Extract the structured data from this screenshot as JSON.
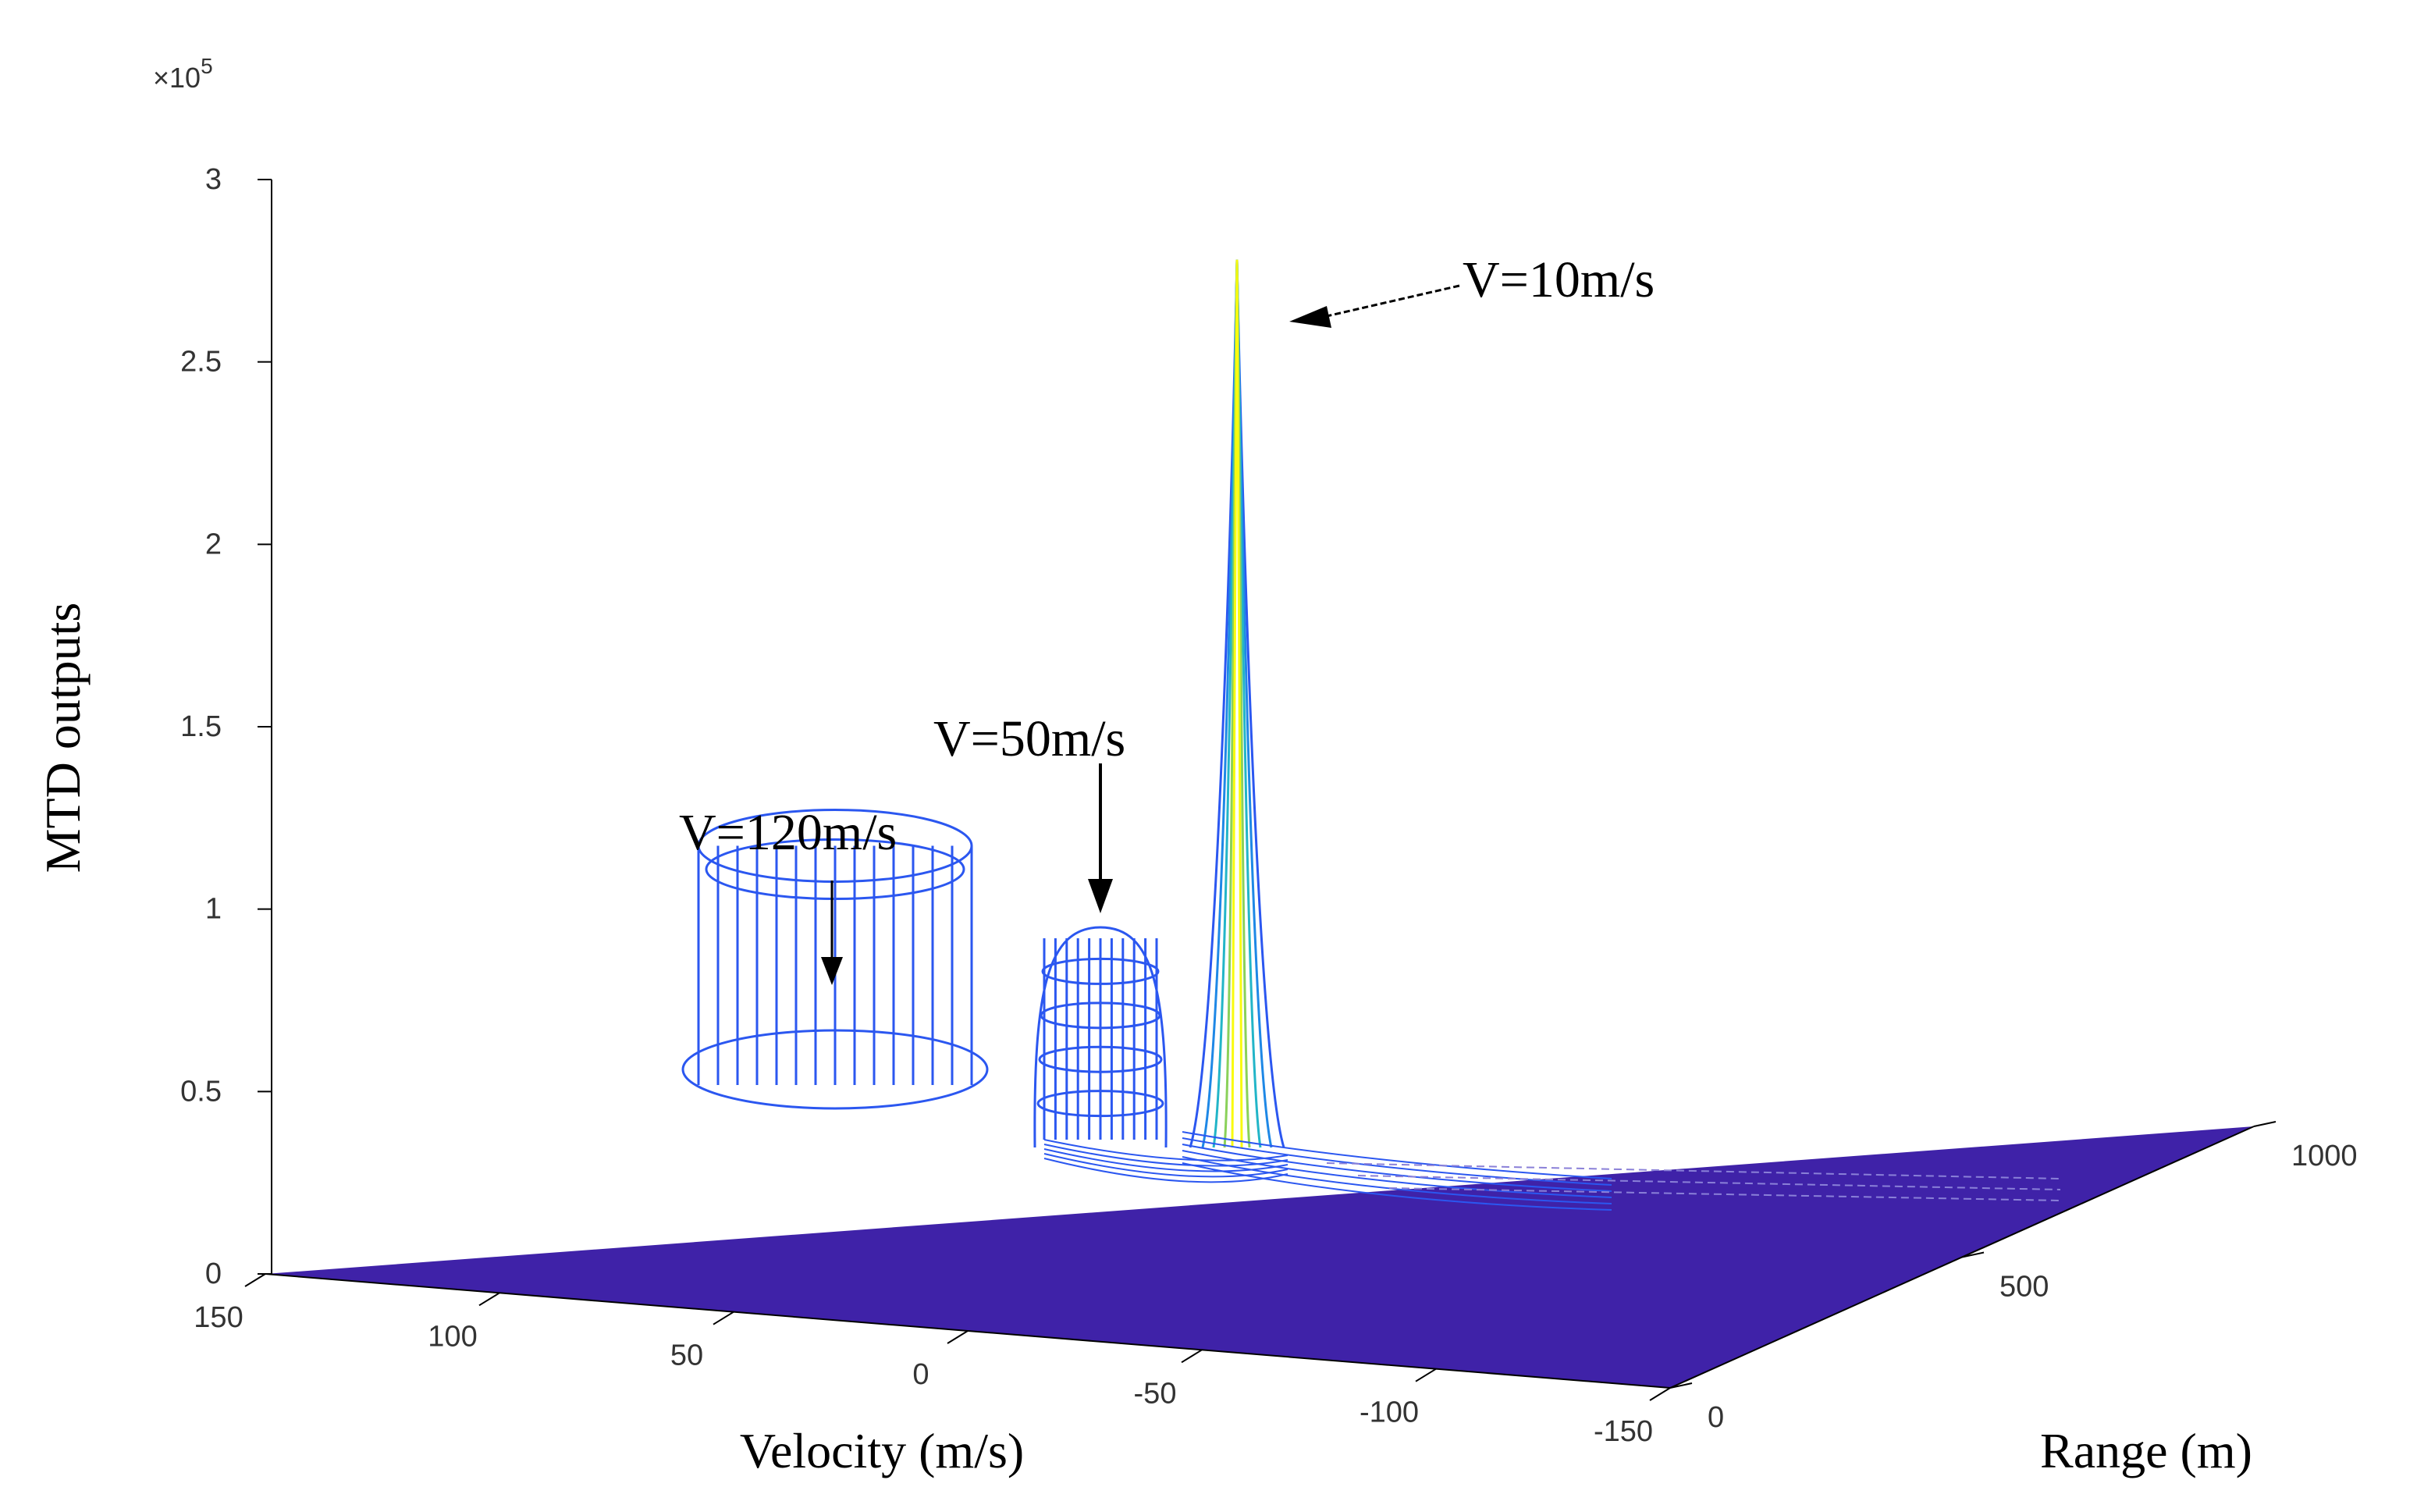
{
  "chart_data": {
    "type": "surface",
    "title": "",
    "xlabel": "Velocity (m/s)",
    "ylabel": "Range (m)",
    "zlabel": "MTD outputs",
    "z_exponent_label": "×10",
    "z_exponent_power": "5",
    "xlim": [
      -150,
      150
    ],
    "ylim": [
      0,
      1000
    ],
    "zlim": [
      0,
      3
    ],
    "x_ticks": [
      150,
      100,
      50,
      0,
      -50,
      -100,
      -150
    ],
    "y_ticks": [
      0,
      500,
      1000
    ],
    "z_ticks": [
      0,
      0.5,
      1,
      1.5,
      2,
      2.5,
      3
    ],
    "x_tick_labels": [
      "150",
      "100",
      "50",
      "0",
      "-50",
      "-100",
      "-150"
    ],
    "y_tick_labels": [
      "0",
      "500",
      "1000"
    ],
    "z_tick_labels": [
      "0",
      "0.5",
      "1",
      "1.5",
      "2",
      "2.5",
      "3"
    ],
    "surface_color": "#3f22a8",
    "colormap": [
      "#3f22a8",
      "#2b57f0",
      "#1e88e6",
      "#22b5c8",
      "#8ad15a",
      "#f9fb0e"
    ],
    "targets": [
      {
        "label": "V=120m/s",
        "velocity": 120,
        "range": 200,
        "peak": 0.72,
        "shape": "flat-ring"
      },
      {
        "label": "V=50m/s",
        "velocity": 50,
        "range": 500,
        "peak": 0.95,
        "shape": "dome"
      },
      {
        "label": "V=10m/s",
        "velocity": 10,
        "range": 750,
        "peak": 2.78,
        "shape": "spike"
      }
    ]
  }
}
